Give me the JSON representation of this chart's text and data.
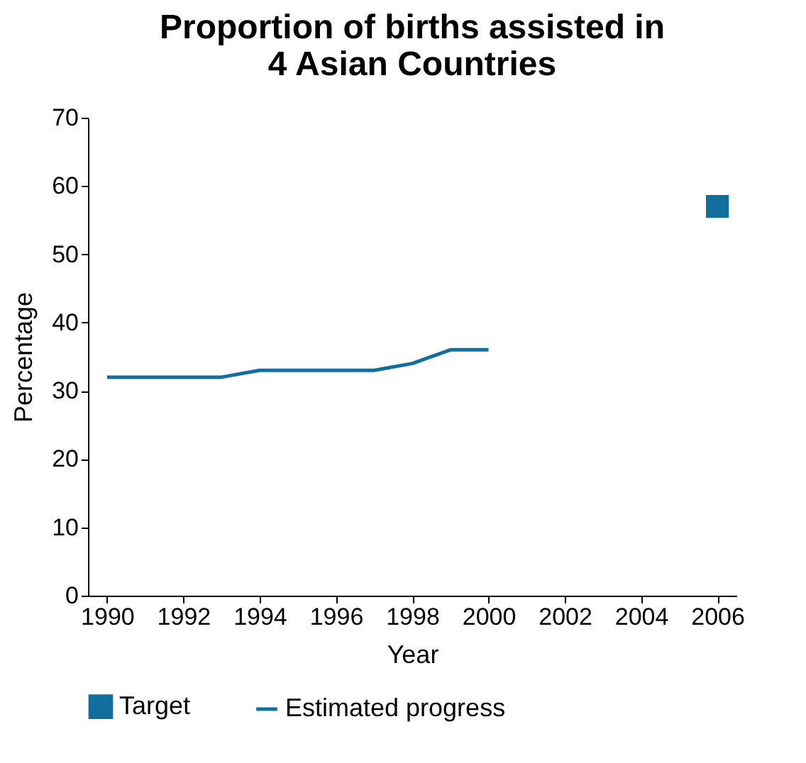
{
  "chart_data": {
    "type": "line",
    "title": "Proportion of births assisted in 4 Asian Countries",
    "xlabel": "Year",
    "ylabel": "Percentage",
    "x": [
      1990,
      1991,
      1992,
      1993,
      1994,
      1995,
      1996,
      1997,
      1998,
      1999,
      2000
    ],
    "series": [
      {
        "name": "Target",
        "type": "scatter",
        "marker": "square",
        "color": "#126f9d",
        "x": [
          2006
        ],
        "values": [
          57
        ]
      },
      {
        "name": "Estimated progress",
        "color": "#126f9d",
        "values": [
          32,
          32,
          32,
          32,
          33,
          33,
          33,
          33,
          34,
          36,
          36
        ]
      }
    ],
    "xlim": [
      1989.5,
      2006.5
    ],
    "xticks": [
      1990,
      1992,
      1994,
      1996,
      1998,
      2000,
      2002,
      2004,
      2006
    ],
    "ylim": [
      0,
      70
    ],
    "yticks": [
      0,
      10,
      20,
      30,
      40,
      50,
      60,
      70
    ],
    "grid": false,
    "legend": "bottom"
  }
}
